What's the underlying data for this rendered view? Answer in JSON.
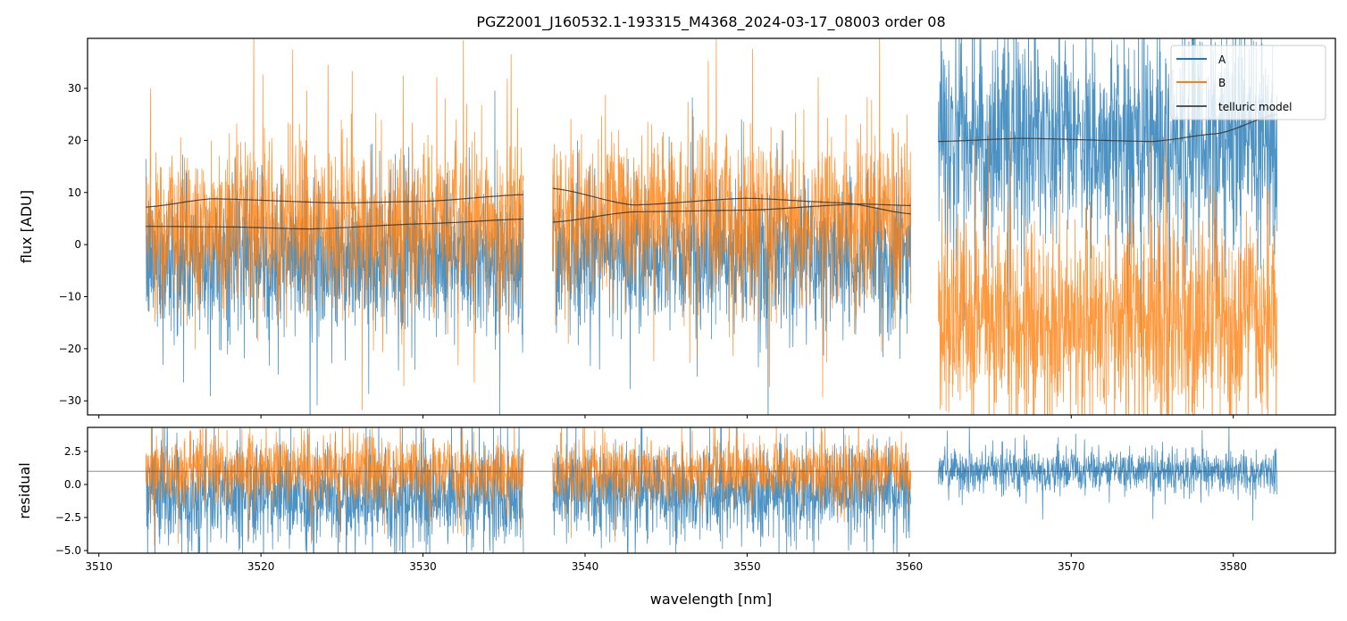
{
  "chart_data": {
    "type": "line",
    "title": "PGZ2001_J160532.1-193315_M4368_2024-03-17_08003  order 08",
    "xlabel": "wavelength [nm]",
    "xlim": [
      3509.3,
      3586.3
    ],
    "xticks": [
      3510,
      3520,
      3530,
      3540,
      3550,
      3560,
      3570,
      3580
    ],
    "colors": {
      "A": "#1f77b4",
      "B": "#ff7f0e",
      "telluric model": "#333333"
    },
    "legend": {
      "placement": "top-right",
      "entries": [
        "A",
        "B",
        "telluric model"
      ]
    },
    "panels": [
      {
        "name": "flux",
        "ylabel": "flux [ADU]",
        "ylim": [
          -32.7,
          39.6
        ],
        "yticks": [
          -30,
          -20,
          -10,
          0,
          10,
          20,
          30
        ],
        "segments": [
          {
            "range": [
              3512.9,
              3536.2
            ],
            "A": {
              "mean": -3,
              "std": 7
            },
            "B": {
              "mean": 4,
              "std": 8
            },
            "model": [
              {
                "x": [
                  3512.9,
                  3517,
                  3525,
                  3530,
                  3536.2
                ],
                "y": [
                  7.2,
                  8.8,
                  8.0,
                  8.3,
                  9.6
                ]
              },
              {
                "x": [
                  3512.9,
                  3518,
                  3523,
                  3530,
                  3536.2
                ],
                "y": [
                  3.5,
                  3.4,
                  3.0,
                  4.0,
                  4.9
                ]
              }
            ]
          },
          {
            "range": [
              3538.0,
              3560.1
            ],
            "A": {
              "mean": -2,
              "std": 7
            },
            "B": {
              "mean": 5,
              "std": 8
            },
            "model": [
              {
                "x": [
                  3538.0,
                  3543,
                  3550,
                  3556,
                  3560.1
                ],
                "y": [
                  10.8,
                  7.6,
                  8.9,
                  8.0,
                  5.9
                ]
              },
              {
                "x": [
                  3538.0,
                  3543,
                  3550,
                  3557,
                  3560.1
                ],
                "y": [
                  4.3,
                  6.3,
                  6.6,
                  7.8,
                  7.5
                ]
              }
            ]
          },
          {
            "range": [
              3561.8,
              3582.7
            ],
            "A": {
              "mean": 20,
              "std": 10
            },
            "B": {
              "mean": -15,
              "std": 10
            },
            "model": [
              {
                "x": [
                  3561.8,
                  3567,
                  3575,
                  3579,
                  3582.7
                ],
                "y": [
                  19.8,
                  20.4,
                  19.8,
                  21.3,
                  25.0
                ]
              }
            ]
          }
        ]
      },
      {
        "name": "residual",
        "ylabel": "residual",
        "ylim": [
          -5.2,
          4.32
        ],
        "yticks": [
          -5.0,
          -2.5,
          0.0,
          2.5
        ],
        "ytick_labels": [
          "−5.0",
          "−2.5",
          "0.0",
          "2.5"
        ],
        "reference_line": 1.0,
        "segments": [
          {
            "range": [
              3512.9,
              3536.2
            ],
            "A": {
              "mean": -0.8,
              "std": 2.0
            },
            "B": {
              "mean": 1.0,
              "std": 1.3
            }
          },
          {
            "range": [
              3538.0,
              3560.1
            ],
            "A": {
              "mean": -0.6,
              "std": 1.8
            },
            "B": {
              "mean": 1.0,
              "std": 1.2
            }
          },
          {
            "range": [
              3561.8,
              3582.7
            ],
            "A": {
              "mean": 1.0,
              "std": 0.8
            }
          }
        ]
      }
    ]
  }
}
